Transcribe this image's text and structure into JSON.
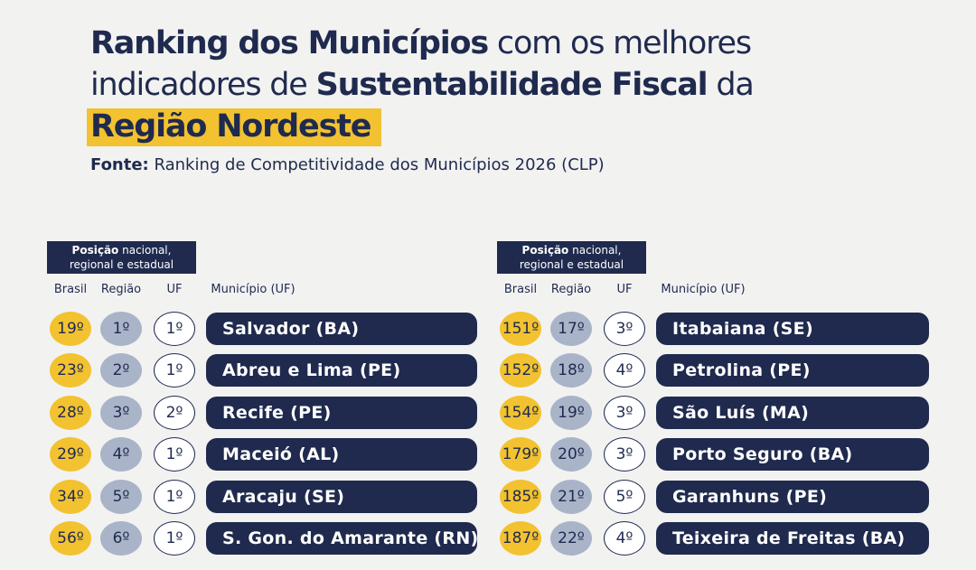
{
  "title": {
    "part1": "Ranking dos Municípios",
    "part2": "com os melhores",
    "part3": "indicadores de",
    "part4": "Sustentabilidade Fiscal",
    "part5": "da",
    "part6": "Região Nordeste"
  },
  "source": {
    "label": "Fonte:",
    "text": "Ranking de Competitividade dos Municípios 2026 (CLP)"
  },
  "tables": [
    {
      "header_bold": "Posição",
      "header_rest": "nacional,",
      "header_line2": "regional e estadual",
      "columns": [
        "Brasil",
        "Região",
        "UF",
        "Município (UF)"
      ],
      "rows": [
        [
          "19º",
          "1º",
          "1º",
          "Salvador (BA)"
        ],
        [
          "23º",
          "2º",
          "1º",
          "Abreu e Lima (PE)"
        ],
        [
          "28º",
          "3º",
          "2º",
          "Recife (PE)"
        ],
        [
          "29º",
          "4º",
          "1º",
          "Maceió (AL)"
        ],
        [
          "34º",
          "5º",
          "1º",
          "Aracaju (SE)"
        ],
        [
          "56º",
          "6º",
          "1º",
          "S. Gon. do Amarante (RN)"
        ]
      ]
    },
    {
      "header_bold": "Posição",
      "header_rest": "nacional,",
      "header_line2": "regional e estadual",
      "columns": [
        "Brasil",
        "Região",
        "UF",
        "Município (UF)"
      ],
      "rows": [
        [
          "151º",
          "17º",
          "3º",
          "Itabaiana (SE)"
        ],
        [
          "152º",
          "18º",
          "4º",
          "Petrolina (PE)"
        ],
        [
          "154º",
          "19º",
          "3º",
          "São Luís (MA)"
        ],
        [
          "179º",
          "20º",
          "3º",
          "Porto Seguro (BA)"
        ],
        [
          "185º",
          "21º",
          "5º",
          "Garanhuns (PE)"
        ],
        [
          "187º",
          "22º",
          "4º",
          "Teixeira de Freitas (BA)"
        ]
      ]
    }
  ]
}
